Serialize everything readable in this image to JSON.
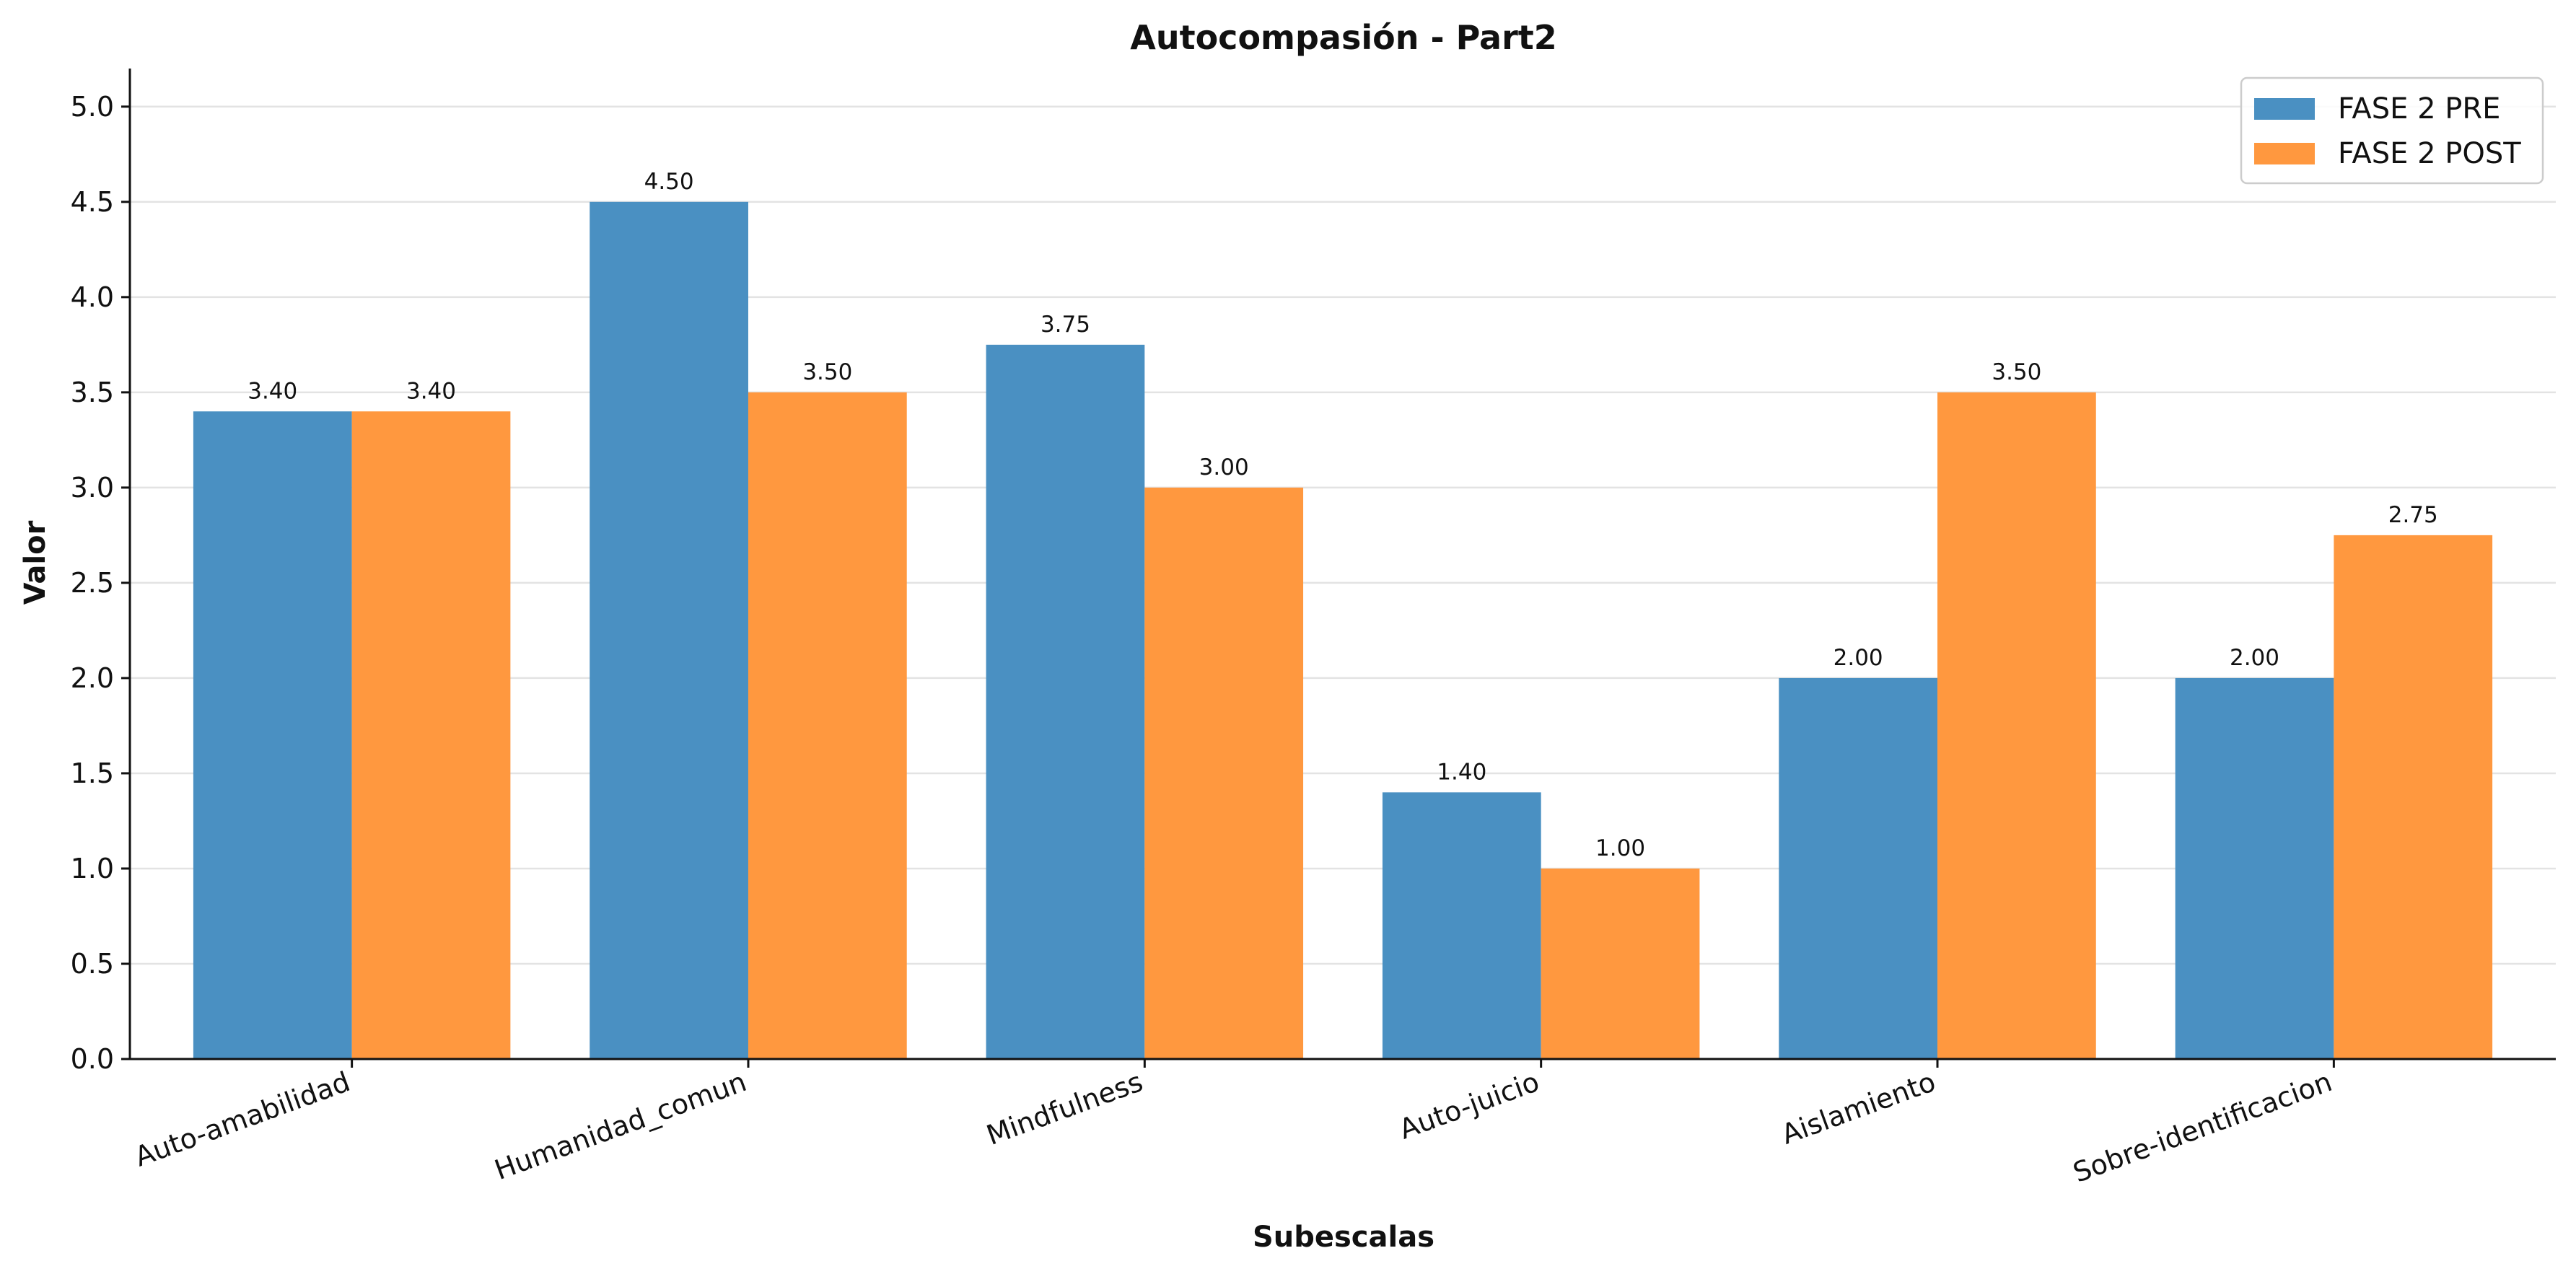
{
  "chart_data": {
    "type": "bar",
    "title": "Autocompasión - Part2",
    "xlabel": "Subescalas",
    "ylabel": "Valor",
    "categories": [
      "Auto-amabilidad",
      "Humanidad_comun",
      "Mindfulness",
      "Auto-juicio",
      "Aislamiento",
      "Sobre-identificacion"
    ],
    "series": [
      {
        "name": "FASE 2 PRE",
        "values": [
          3.4,
          4.5,
          3.75,
          1.4,
          2.0,
          2.0
        ],
        "labels": [
          "3.40",
          "4.50",
          "3.75",
          "1.40",
          "2.00",
          "2.00"
        ],
        "color": "#4a90c2"
      },
      {
        "name": "FASE 2 POST",
        "values": [
          3.4,
          3.5,
          3.0,
          1.0,
          3.5,
          2.75
        ],
        "labels": [
          "3.40",
          "3.50",
          "3.00",
          "1.00",
          "3.50",
          "2.75"
        ],
        "color": "#ff983f"
      }
    ],
    "ylim": [
      0,
      5.2
    ],
    "yticks": [
      "0.0",
      "0.5",
      "1.0",
      "1.5",
      "2.0",
      "2.5",
      "3.0",
      "3.5",
      "4.0",
      "4.5",
      "5.0"
    ],
    "grid": true,
    "legend_position": "top-right"
  }
}
